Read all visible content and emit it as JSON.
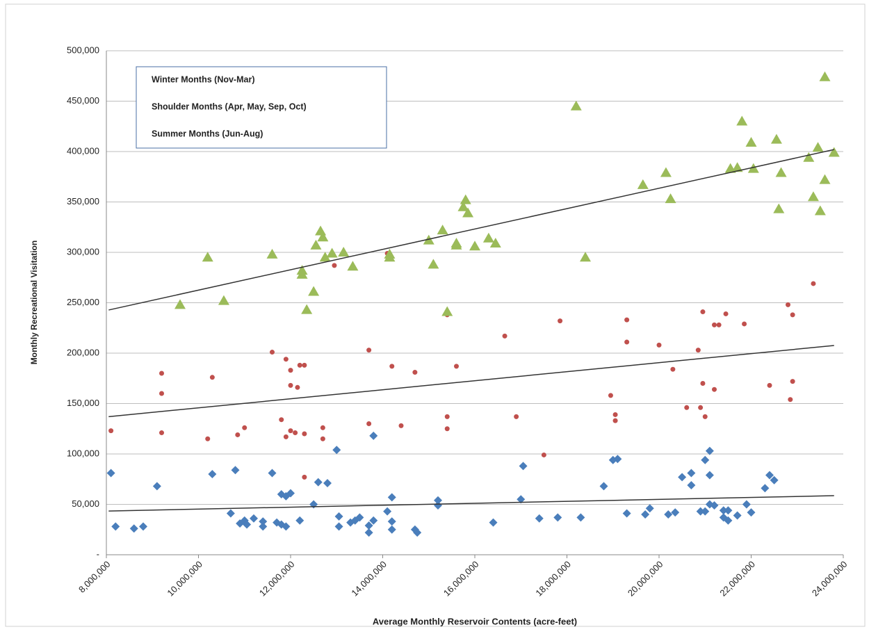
{
  "chart_data": {
    "type": "scatter",
    "x_label": "Average Monthly Reservoir Contents (acre-feet)",
    "y_label": "Monthly Recreational Visitation",
    "xlim": [
      8000000,
      24000000
    ],
    "xticks": [
      {
        "value": 8000000,
        "label": "8,000,000"
      },
      {
        "value": 10000000,
        "label": "10,000,000"
      },
      {
        "value": 12000000,
        "label": "12,000,000"
      },
      {
        "value": 14000000,
        "label": "14,000,000"
      },
      {
        "value": 16000000,
        "label": "16,000,000"
      },
      {
        "value": 18000000,
        "label": "18,000,000"
      },
      {
        "value": 20000000,
        "label": "20,000,000"
      },
      {
        "value": 22000000,
        "label": "22,000,000"
      },
      {
        "value": 24000000,
        "label": "24,000,000"
      }
    ],
    "ylim": [
      0,
      500000
    ],
    "yticks": [
      {
        "value": 0,
        "label": "-"
      },
      {
        "value": 50000,
        "label": "50,000"
      },
      {
        "value": 100000,
        "label": "100,000"
      },
      {
        "value": 150000,
        "label": "150,000"
      },
      {
        "value": 200000,
        "label": "200,000"
      },
      {
        "value": 250000,
        "label": "250,000"
      },
      {
        "value": 300000,
        "label": "300,000"
      },
      {
        "value": 350000,
        "label": "350,000"
      },
      {
        "value": 400000,
        "label": "400,000"
      },
      {
        "value": 450000,
        "label": "450,000"
      },
      {
        "value": 500000,
        "label": "500,000"
      }
    ],
    "grid": true,
    "legend": "upper-left",
    "series": [
      {
        "name": "Winter Months (Nov-Mar)",
        "color": "#4a7ebb",
        "marker": "diamond",
        "x": [
          8100000,
          8200000,
          8600000,
          8800000,
          9100000,
          10300000,
          10800000,
          10700000,
          10900000,
          11000000,
          11050000,
          11200000,
          11400000,
          11400000,
          11600000,
          11700000,
          11800000,
          11800000,
          11900000,
          11900000,
          12000000,
          12200000,
          12500000,
          12600000,
          12800000,
          13000000,
          13050000,
          13050000,
          13300000,
          13400000,
          13500000,
          13700000,
          13700000,
          13800000,
          13800000,
          14100000,
          14200000,
          14200000,
          14200000,
          14700000,
          14750000,
          15200000,
          15200000,
          16400000,
          17000000,
          17050000,
          17400000,
          17800000,
          18300000,
          18800000,
          19000000,
          19100000,
          19300000,
          19700000,
          19800000,
          20200000,
          20350000,
          20500000,
          20700000,
          20700000,
          20900000,
          21000000,
          21000000,
          21100000,
          21100000,
          21100000,
          21200000,
          21400000,
          21400000,
          21500000,
          21500000,
          21700000,
          21900000,
          22000000,
          22300000,
          22400000,
          22500000
        ],
        "values": [
          81000,
          28000,
          26000,
          28000,
          68000,
          80000,
          84000,
          41000,
          31000,
          34000,
          30000,
          36000,
          28000,
          33000,
          81000,
          32000,
          60000,
          30000,
          28000,
          58000,
          61000,
          34000,
          50000,
          72000,
          71000,
          104000,
          38000,
          28000,
          32000,
          34000,
          37000,
          29000,
          22000,
          118000,
          34000,
          43000,
          33000,
          57000,
          25000,
          25000,
          22000,
          54000,
          49000,
          32000,
          55000,
          88000,
          36000,
          37000,
          37000,
          68000,
          94000,
          95000,
          41000,
          40000,
          46000,
          40000,
          42000,
          77000,
          69000,
          81000,
          43000,
          43000,
          94000,
          79000,
          103000,
          50000,
          49000,
          37000,
          44000,
          44000,
          34000,
          39000,
          50000,
          42000,
          66000,
          79000,
          74000
        ],
        "trendline": {
          "x": [
            8050000,
            23800000
          ],
          "y": [
            43400,
            58600
          ]
        }
      },
      {
        "name": "Shoulder Months (Apr, May, Sep, Oct)",
        "color": "#c0504d",
        "marker": "circle",
        "x": [
          8100000,
          9200000,
          9200000,
          9200000,
          10200000,
          10300000,
          10850000,
          11000000,
          11600000,
          11800000,
          11900000,
          11900000,
          12000000,
          12000000,
          12000000,
          12100000,
          12150000,
          12200000,
          12300000,
          12300000,
          12300000,
          12700000,
          12700000,
          12950000,
          13700000,
          13700000,
          14100000,
          14400000,
          14200000,
          14700000,
          15400000,
          15400000,
          15400000,
          15600000,
          16650000,
          16900000,
          17500000,
          17850000,
          18950000,
          19050000,
          19050000,
          19300000,
          19300000,
          20000000,
          20300000,
          20600000,
          20850000,
          20900000,
          20950000,
          20950000,
          21000000,
          21200000,
          21200000,
          21300000,
          21450000,
          21850000,
          22400000,
          22800000,
          22850000,
          22900000,
          22900000,
          23350000
        ],
        "values": [
          123000,
          121000,
          160000,
          180000,
          115000,
          176000,
          119000,
          126000,
          201000,
          134000,
          194000,
          117000,
          183000,
          168000,
          123000,
          121000,
          166000,
          188000,
          188000,
          120000,
          77000,
          115000,
          126000,
          287000,
          203000,
          130000,
          299000,
          128000,
          187000,
          181000,
          238000,
          137000,
          125000,
          187000,
          217000,
          137000,
          99000,
          232000,
          158000,
          139000,
          133000,
          233000,
          211000,
          208000,
          184000,
          146000,
          203000,
          146000,
          241000,
          170000,
          137000,
          164000,
          228000,
          228000,
          239000,
          229000,
          168000,
          248000,
          154000,
          238000,
          172000,
          269000
        ],
        "trendline": {
          "x": [
            8050000,
            23800000
          ],
          "y": [
            137000,
            207600
          ]
        }
      },
      {
        "name": "Summer Months (Jun-Aug)",
        "color": "#9bbb59",
        "marker": "triangle",
        "x": [
          9600000,
          10200000,
          10550000,
          11600000,
          12250000,
          12250000,
          12350000,
          12500000,
          12550000,
          12650000,
          12700000,
          12750000,
          12900000,
          13150000,
          13350000,
          14150000,
          14150000,
          15000000,
          15100000,
          15300000,
          15400000,
          15600000,
          15600000,
          15750000,
          15800000,
          15850000,
          16000000,
          16300000,
          16450000,
          18200000,
          18400000,
          19650000,
          20150000,
          20250000,
          21550000,
          21700000,
          21800000,
          22000000,
          22050000,
          22550000,
          22600000,
          22650000,
          23250000,
          23350000,
          23450000,
          23500000,
          23600000,
          23600000,
          23800000
        ],
        "values": [
          248000,
          295000,
          252000,
          298000,
          282000,
          278000,
          243000,
          261000,
          307000,
          321000,
          315000,
          295000,
          299000,
          300000,
          286000,
          295000,
          298000,
          312000,
          288000,
          322000,
          241000,
          307000,
          309000,
          345000,
          352000,
          339000,
          306000,
          314000,
          309000,
          445000,
          295000,
          367000,
          379000,
          353000,
          383000,
          384000,
          430000,
          409000,
          383000,
          412000,
          343000,
          379000,
          394000,
          355000,
          404000,
          341000,
          372000,
          474000,
          399000
        ],
        "trendline": {
          "x": [
            8050000,
            23800000
          ],
          "y": [
            242800,
            402000
          ]
        }
      }
    ]
  }
}
